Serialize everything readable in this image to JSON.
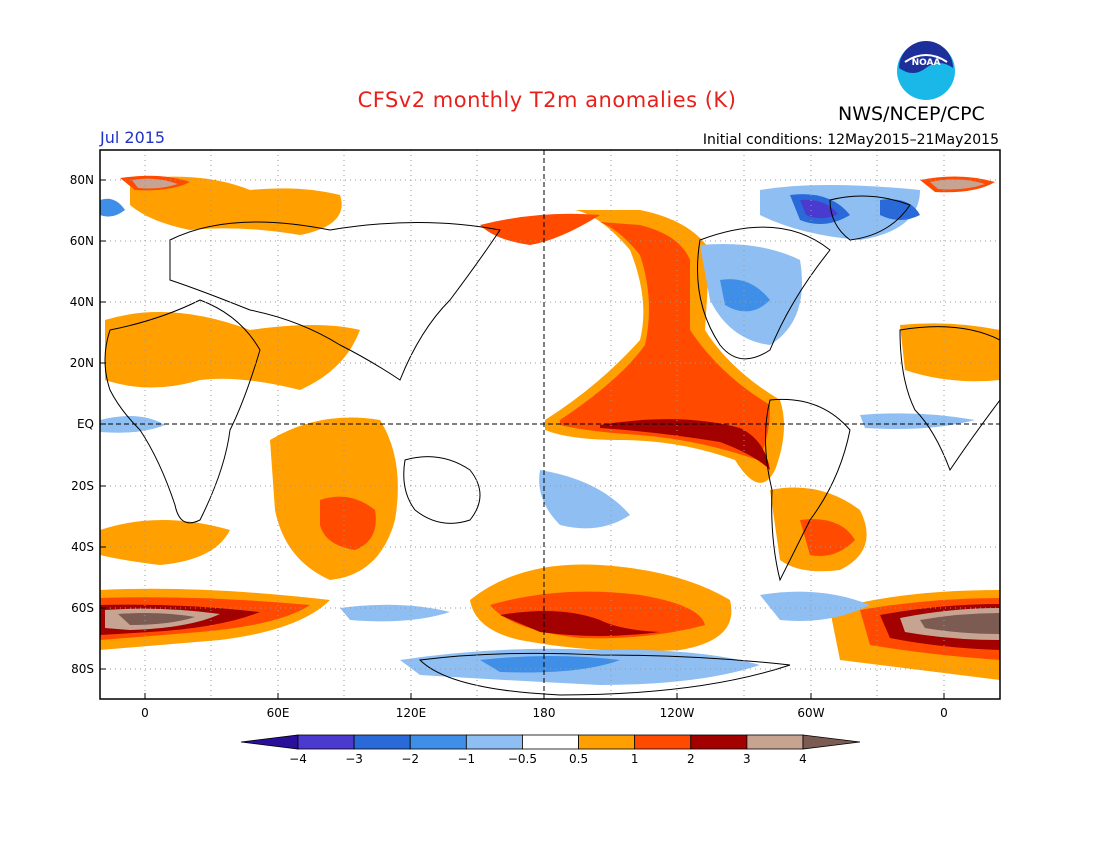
{
  "header": {
    "title": "CFSv2 monthly T2m anomalies (K)",
    "organization": "NWS/NCEP/CPC",
    "valid_month": "Jul 2015",
    "initial_conditions": "Initial conditions: 12May2015–21May2015",
    "logo_text": "NOAA"
  },
  "axes": {
    "lat_labels": [
      "80N",
      "60N",
      "40N",
      "20N",
      "EQ",
      "20S",
      "40S",
      "60S",
      "80S"
    ],
    "lon_labels": [
      "0",
      "60E",
      "120E",
      "180",
      "120W",
      "60W",
      "0"
    ]
  },
  "colorbar": {
    "labels": [
      "−4",
      "−3",
      "−2",
      "−1",
      "−0.5",
      "0.5",
      "1",
      "2",
      "3",
      "4"
    ],
    "colors": [
      "#2a0f9a",
      "#4a3ad0",
      "#2a6ad8",
      "#3f8fe8",
      "#8fbff2",
      "#ffffff",
      "#ff9f00",
      "#ff4a00",
      "#a30000",
      "#c7a391",
      "#7b5b52"
    ]
  }
}
